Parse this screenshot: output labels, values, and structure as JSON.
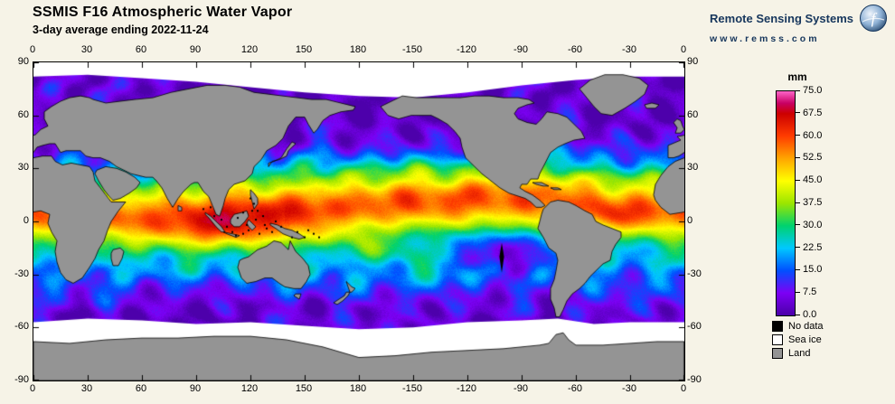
{
  "header": {
    "title": "SSMIS F16 Atmospheric Water Vapor",
    "subtitle": "3-day average ending 2022-11-24"
  },
  "branding": {
    "name": "Remote Sensing Systems",
    "url": "www.remss.com",
    "logo": "globe-icon",
    "text_color": "#16365c"
  },
  "map": {
    "projection": "equirectangular",
    "lon_ticks": [
      "0",
      "30",
      "60",
      "90",
      "120",
      "150",
      "180",
      "-150",
      "-120",
      "-90",
      "-60",
      "-30",
      "0"
    ],
    "lat_ticks": [
      "90",
      "60",
      "30",
      "0",
      "-30",
      "-60",
      "-90"
    ]
  },
  "colorbar": {
    "units": "mm",
    "tick_labels": [
      "75.0",
      "67.5",
      "60.0",
      "52.5",
      "45.0",
      "37.5",
      "30.0",
      "22.5",
      "15.0",
      "7.5",
      "0.0"
    ],
    "min": 0,
    "max": 75,
    "stops": [
      [
        0,
        "#4b00a8"
      ],
      [
        7.5,
        "#7d00f5"
      ],
      [
        15,
        "#0050ff"
      ],
      [
        22.5,
        "#00c8ff"
      ],
      [
        30,
        "#00d26e"
      ],
      [
        37.5,
        "#9be600"
      ],
      [
        45,
        "#ffff00"
      ],
      [
        52.5,
        "#ffa500"
      ],
      [
        60,
        "#ff3c00"
      ],
      [
        67.5,
        "#cd0000"
      ],
      [
        71,
        "#c80064"
      ],
      [
        75,
        "#ff64c8"
      ]
    ]
  },
  "legend": {
    "items": [
      {
        "label": "No data",
        "color": "#000000",
        "swatch_style": "background:#000000"
      },
      {
        "label": "Sea ice",
        "color": "#ffffff",
        "swatch_style": "background:#ffffff"
      },
      {
        "label": "Land",
        "color": "#949494",
        "swatch_style": "background:#949494"
      }
    ]
  },
  "page": {
    "background": "#f6f3e7",
    "frame_color": "#000000"
  }
}
